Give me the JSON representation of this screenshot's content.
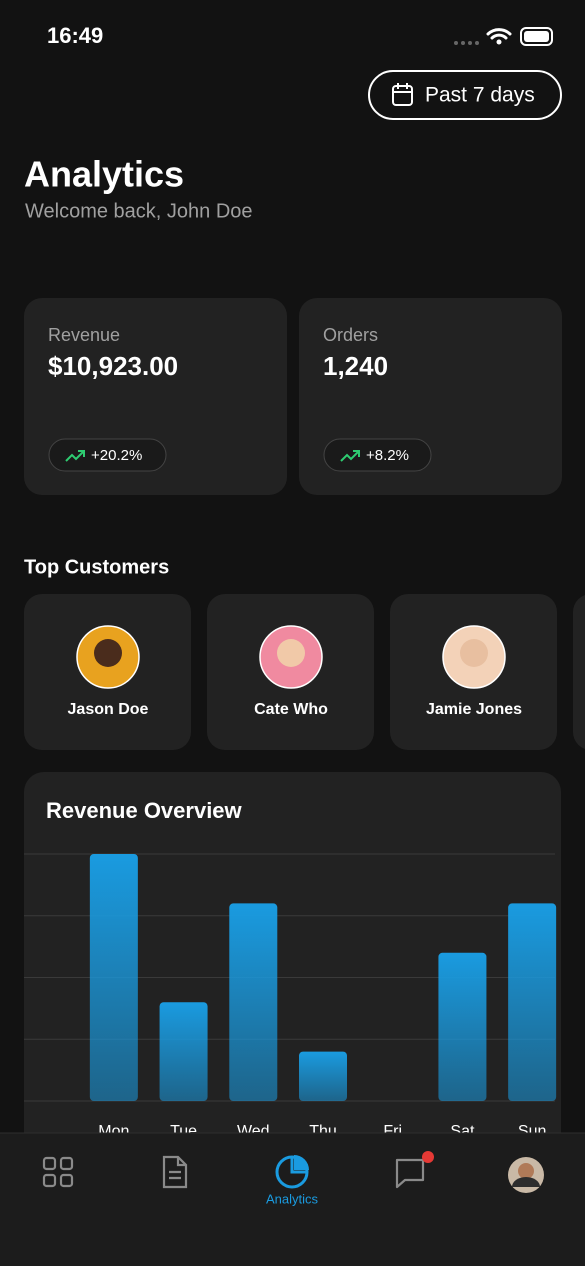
{
  "status": {
    "time": "16:49"
  },
  "header": {
    "button": "Past 7 days",
    "title": "Analytics",
    "subtitle": "Welcome back, John Doe"
  },
  "stats": [
    {
      "label": "Revenue",
      "value": "$10,923.00",
      "change": "+20.2%"
    },
    {
      "label": "Orders",
      "value": "1,240",
      "change": "+8.2%"
    }
  ],
  "top_customers": {
    "title": "Top Customers",
    "names": [
      "Jason Doe",
      "Cate Who",
      "Jamie Jones"
    ]
  },
  "chart_data": {
    "type": "bar",
    "title": "Revenue Overview",
    "categories": [
      "Mon",
      "Tue",
      "Wed",
      "Thu",
      "Fri",
      "Sat",
      "Sun"
    ],
    "values": [
      4,
      1.6,
      3.2,
      0.8,
      0,
      2.4,
      3.2
    ],
    "color": "#1a9be0",
    "ylim": [
      0,
      4
    ],
    "yticks": [
      0,
      1,
      2,
      3,
      4
    ],
    "grid": true
  },
  "tab_bar": {
    "active_label": "Analytics"
  }
}
